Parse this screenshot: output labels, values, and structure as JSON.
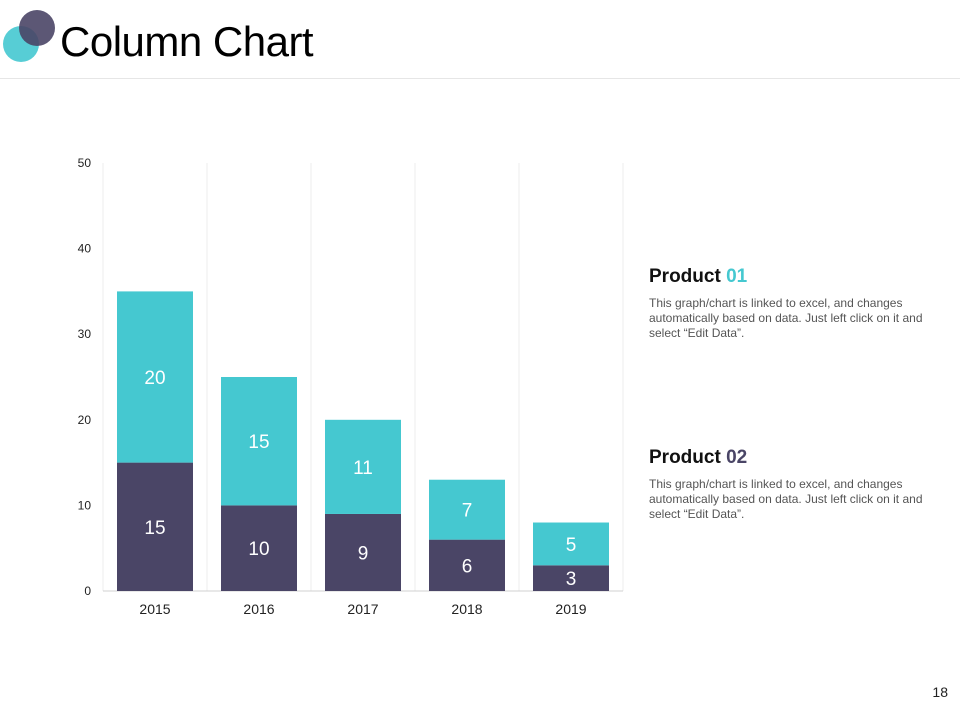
{
  "header": {
    "title": "Column Chart"
  },
  "colors": {
    "product01": "#45c8d0",
    "product02": "#4a4566"
  },
  "chart_data": {
    "type": "bar",
    "stacked": true,
    "categories": [
      "2015",
      "2016",
      "2017",
      "2018",
      "2019"
    ],
    "series": [
      {
        "name": "Product 02",
        "values": [
          15,
          10,
          9,
          6,
          3
        ],
        "color": "#4a4566"
      },
      {
        "name": "Product 01",
        "values": [
          20,
          15,
          11,
          7,
          5
        ],
        "color": "#45c8d0"
      }
    ],
    "ylim": [
      0,
      50
    ],
    "yticks": [
      0,
      10,
      20,
      30,
      40,
      50
    ],
    "grid": "vertical",
    "data_labels": true
  },
  "products": [
    {
      "label": "Product",
      "number": "01",
      "text": "This graph/chart is linked to excel, and changes automatically based on data. Just left click on it and select “Edit Data”."
    },
    {
      "label": "Product",
      "number": "02",
      "text": "This graph/chart is linked to excel, and changes automatically based on data. Just left click on it and select “Edit Data”."
    }
  ],
  "page_number": "18"
}
